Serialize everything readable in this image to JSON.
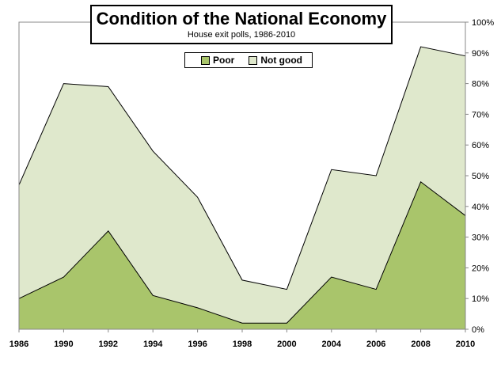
{
  "chart_data": {
    "type": "area",
    "title": "Condition of the National Economy",
    "subtitle": "House exit polls, 1986-2010",
    "x": [
      "1986",
      "1990",
      "1992",
      "1994",
      "1996",
      "1998",
      "2000",
      "2004",
      "2006",
      "2008",
      "2010"
    ],
    "series": [
      {
        "name": "Poor",
        "color": "#a9c56b",
        "values": [
          10,
          17,
          32,
          11,
          7,
          2,
          2,
          17,
          13,
          48,
          37
        ]
      },
      {
        "name": "Not good",
        "color": "#dfe8cc",
        "values": [
          47,
          80,
          79,
          58,
          43,
          16,
          13,
          52,
          50,
          92,
          89
        ]
      }
    ],
    "y_ticks": [
      "0%",
      "10%",
      "20%",
      "30%",
      "40%",
      "50%",
      "60%",
      "70%",
      "80%",
      "90%",
      "100%"
    ],
    "ylim": [
      0,
      100
    ],
    "y_axis_position": "right",
    "grid": false,
    "legend_position": "top-center"
  }
}
